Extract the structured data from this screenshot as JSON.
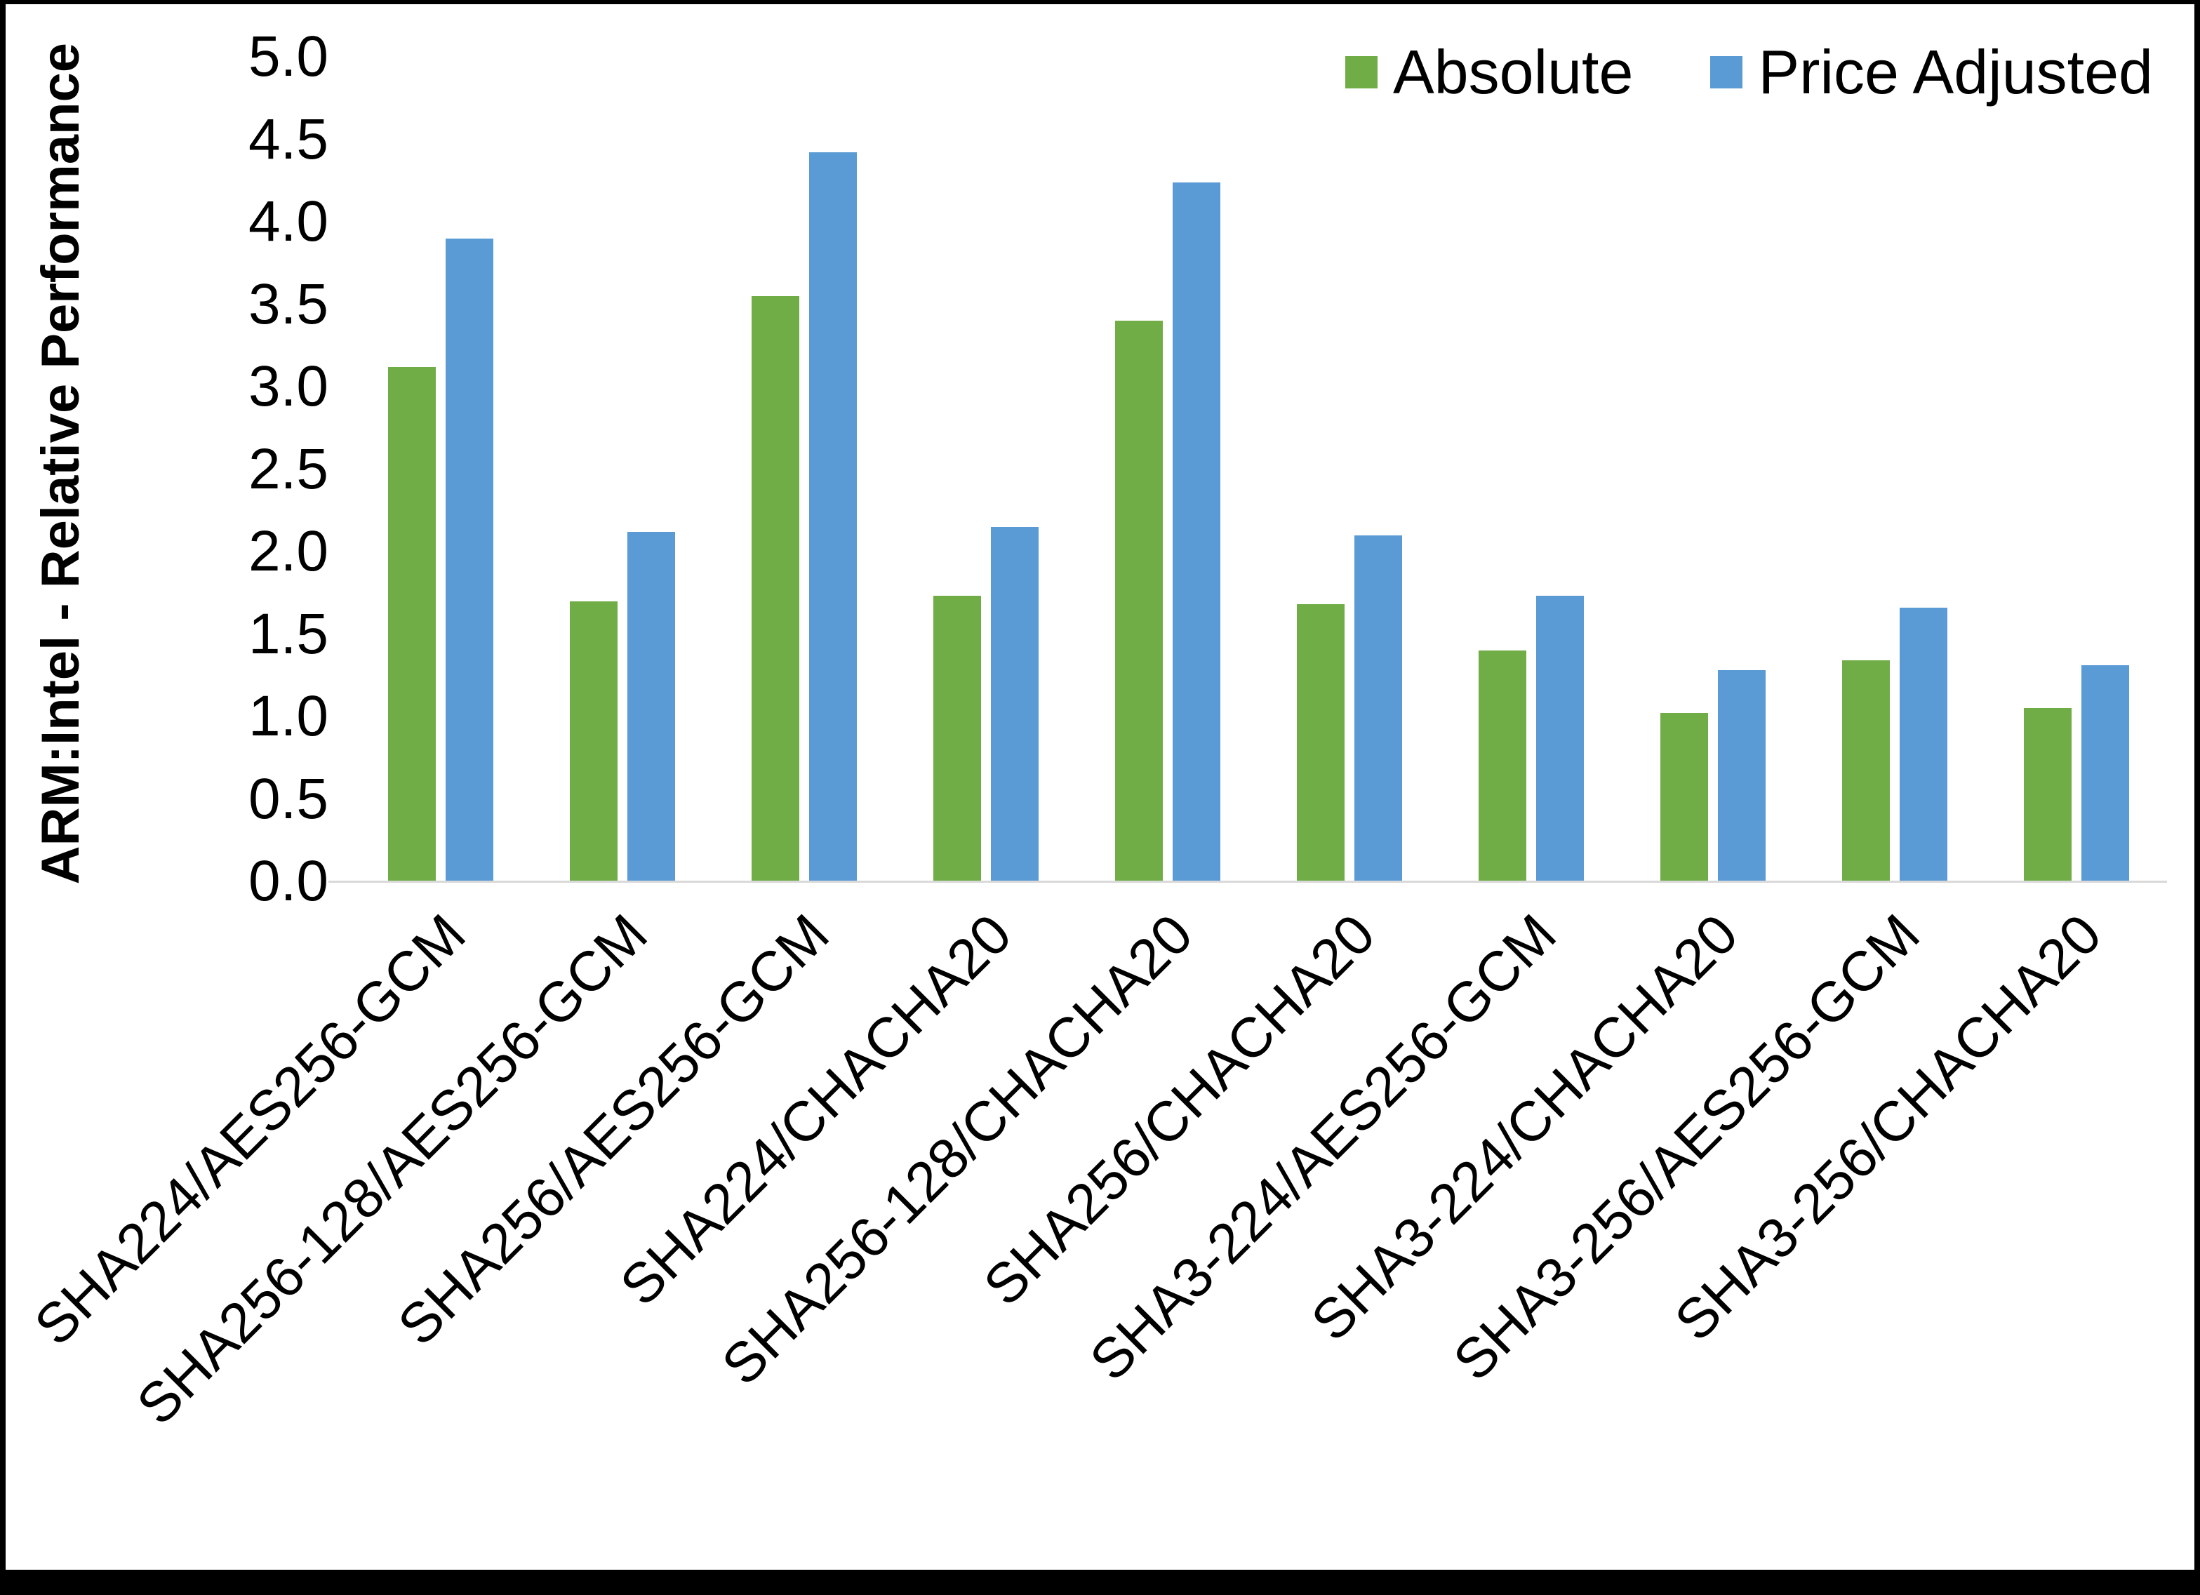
{
  "figure": {
    "frame_border_color": "#000000",
    "background_color": "#ffffff",
    "axis_line_color": "#d9d9d9"
  },
  "chart_data": {
    "type": "bar",
    "title": "",
    "xlabel": "",
    "ylabel": "ARM:Intel - Relative Performance",
    "ylim": [
      0,
      5
    ],
    "ytick_step": 0.5,
    "yticks": [
      "0.0",
      "0.5",
      "1.0",
      "1.5",
      "2.0",
      "2.5",
      "3.0",
      "3.5",
      "4.0",
      "4.5",
      "5.0"
    ],
    "grid": false,
    "legend_position": "top-right",
    "categories": [
      "SHA224/AES256-GCM",
      "SHA256-128/AES256-GCM",
      "SHA256/AES256-GCM",
      "SHA224/CHACHA20",
      "SHA256-128/CHACHA20",
      "SHA256/CHACHA20",
      "SHA3-224/AES256-GCM",
      "SHA3-224/CHACHA20",
      "SHA3-256/AES256-GCM",
      "SHA3-256/CHACHA20"
    ],
    "series": [
      {
        "name": "Absolute",
        "color": "#70AD47",
        "values": [
          3.12,
          1.7,
          3.55,
          1.73,
          3.4,
          1.68,
          1.4,
          1.02,
          1.34,
          1.05
        ]
      },
      {
        "name": "Price Adjusted",
        "color": "#5B9BD5",
        "values": [
          3.9,
          2.12,
          4.42,
          2.15,
          4.24,
          2.1,
          1.73,
          1.28,
          1.66,
          1.31
        ]
      }
    ]
  }
}
